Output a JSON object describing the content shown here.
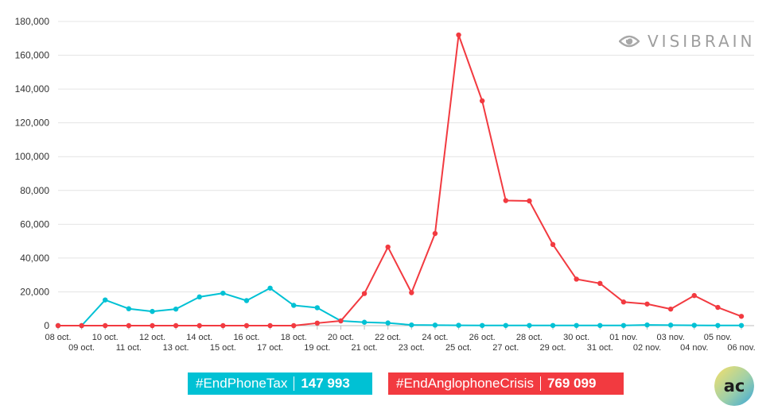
{
  "watermark": {
    "text": "VISIBRAIN",
    "icon": "eye-icon"
  },
  "legend": {
    "items": [
      {
        "label": "#EndPhoneTax",
        "total": "147 993",
        "color": "#00c1d4"
      },
      {
        "label": "#EndAnglophoneCrisis",
        "total": "769 099",
        "color": "#f23a40"
      }
    ]
  },
  "badge": {
    "text": "ac"
  },
  "chart_data": {
    "type": "line",
    "title": "",
    "xlabel": "",
    "ylabel": "",
    "ylim": [
      0,
      180000
    ],
    "yticks": [
      "0",
      "20,000",
      "40,000",
      "60,000",
      "80,000",
      "100,000",
      "120,000",
      "140,000",
      "160,000",
      "180,000"
    ],
    "grid": true,
    "categories": [
      "08 oct.",
      "09 oct.",
      "10 oct.",
      "11 oct.",
      "12 oct.",
      "13 oct.",
      "14 oct.",
      "15 oct.",
      "16 oct.",
      "17 oct.",
      "18 oct.",
      "19 oct.",
      "20 oct.",
      "21 oct.",
      "22 oct.",
      "23 oct.",
      "24 oct.",
      "25 oct.",
      "26 oct.",
      "27 oct.",
      "28 oct.",
      "29 oct.",
      "30 oct.",
      "31 oct.",
      "01 nov.",
      "02 nov.",
      "03 nov.",
      "04 nov.",
      "05 nov.",
      "06 nov."
    ],
    "series": [
      {
        "name": "#EndPhoneTax",
        "color": "#00c1d4",
        "values": [
          0,
          0,
          15200,
          10000,
          8400,
          9800,
          17000,
          19200,
          14800,
          22200,
          12000,
          10600,
          2800,
          2000,
          1600,
          400,
          300,
          200,
          100,
          100,
          100,
          100,
          100,
          100,
          100,
          400,
          300,
          200,
          100,
          100
        ]
      },
      {
        "name": "#EndAnglophoneCrisis",
        "color": "#f23a40",
        "values": [
          0,
          0,
          0,
          0,
          0,
          0,
          0,
          0,
          0,
          0,
          0,
          1500,
          2800,
          19000,
          46500,
          19500,
          54500,
          172000,
          133000,
          74000,
          73800,
          48000,
          27500,
          25000,
          14000,
          12800,
          9800,
          17800,
          10800,
          5500
        ]
      }
    ]
  }
}
